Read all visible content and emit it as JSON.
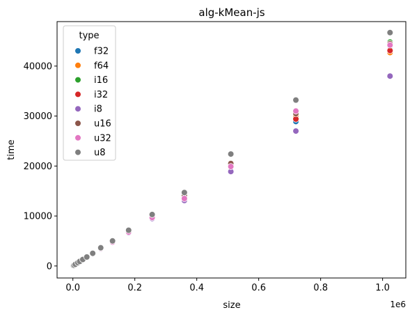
{
  "chart_data": {
    "type": "scatter",
    "title": "alg-kMean-js",
    "xlabel": "size",
    "ylabel": "time",
    "x_offset_label": "1e6",
    "xlim": [
      -0.051,
      1.075
    ],
    "ylim": [
      -2400,
      48900
    ],
    "x_ticks": [
      0.0,
      0.2,
      0.4,
      0.6,
      0.8,
      1.0
    ],
    "x_tick_labels": [
      "0.0",
      "0.2",
      "0.4",
      "0.6",
      "0.8",
      "1.0"
    ],
    "y_ticks": [
      0,
      10000,
      20000,
      30000,
      40000
    ],
    "y_tick_labels": [
      "0",
      "10000",
      "20000",
      "30000",
      "40000"
    ],
    "legend": {
      "title": "type",
      "position": "upper-left",
      "entries": [
        "f32",
        "f64",
        "i16",
        "i32",
        "i8",
        "u16",
        "u32",
        "u8"
      ]
    },
    "colors": {
      "f32": "#1f77b4",
      "f64": "#ff7f0e",
      "i16": "#2ca02c",
      "i32": "#d62728",
      "i8": "#9467bd",
      "u16": "#8c564b",
      "u32": "#e377c2",
      "u8": "#7f7f7f"
    },
    "x": [
      0.001,
      0.002,
      0.004,
      0.008,
      0.016,
      0.022,
      0.032,
      0.045,
      0.064,
      0.09,
      0.128,
      0.18,
      0.256,
      0.36,
      0.51,
      0.72,
      1.024
    ],
    "series": [
      {
        "name": "f32",
        "values": [
          40,
          80,
          160,
          320,
          640,
          880,
          1260,
          1750,
          2450,
          3520,
          4850,
          6900,
          9900,
          13700,
          19700,
          28900,
          43300
        ]
      },
      {
        "name": "f64",
        "values": [
          40,
          80,
          160,
          320,
          640,
          890,
          1270,
          1760,
          2470,
          3540,
          4880,
          6950,
          9950,
          13900,
          20000,
          30000,
          42700
        ]
      },
      {
        "name": "i16",
        "values": [
          40,
          80,
          160,
          320,
          650,
          900,
          1280,
          1780,
          2500,
          3580,
          4930,
          7000,
          10100,
          14200,
          20600,
          30700,
          44800
        ]
      },
      {
        "name": "i32",
        "values": [
          40,
          80,
          160,
          320,
          640,
          880,
          1260,
          1750,
          2460,
          3530,
          4860,
          6920,
          9920,
          13800,
          19800,
          29400,
          43100
        ]
      },
      {
        "name": "i8",
        "values": [
          40,
          80,
          150,
          310,
          620,
          860,
          1220,
          1700,
          2380,
          3400,
          4700,
          6650,
          9500,
          13100,
          18900,
          27000,
          38000
        ]
      },
      {
        "name": "u16",
        "values": [
          40,
          80,
          160,
          320,
          650,
          900,
          1280,
          1780,
          2500,
          3580,
          4920,
          7000,
          10050,
          14100,
          20500,
          30500,
          44500
        ]
      },
      {
        "name": "u32",
        "values": [
          40,
          80,
          160,
          320,
          640,
          880,
          1260,
          1750,
          2450,
          3500,
          4800,
          6800,
          9700,
          13500,
          19900,
          31000,
          44200
        ]
      },
      {
        "name": "u8",
        "values": [
          40,
          80,
          160,
          330,
          660,
          910,
          1300,
          1800,
          2540,
          3640,
          5020,
          7150,
          10300,
          14700,
          22400,
          33200,
          46700
        ]
      }
    ]
  }
}
